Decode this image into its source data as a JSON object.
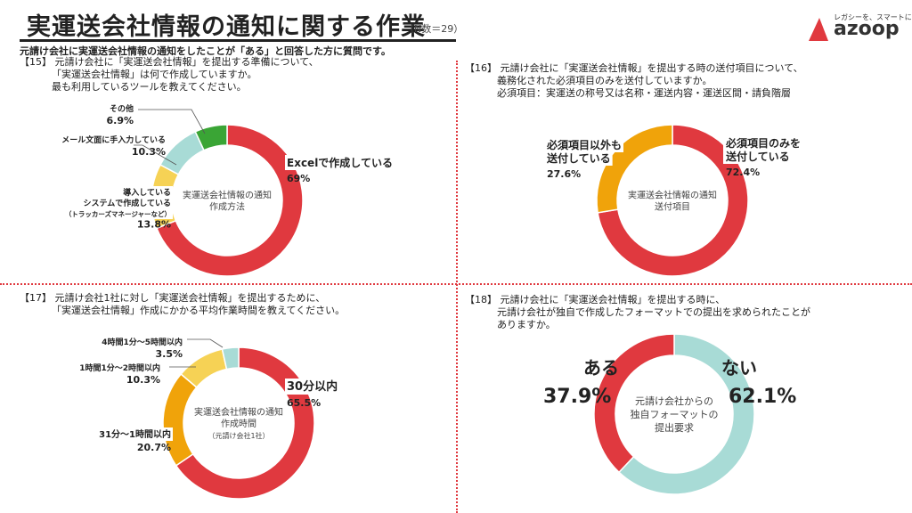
{
  "header": {
    "title": "実運送会社情報の通知に関する作業",
    "sample_note": "（N数＝29）",
    "intro": "元請け会社に実運送会社情報の通知をしたことが「ある」と回答した方に質問です。"
  },
  "logo": {
    "tagline": "レガシーを、スマートに。",
    "wordmark": "azoop"
  },
  "colors": {
    "red": "#e0393f",
    "orange": "#f0a30a",
    "yellow": "#f6d255",
    "teal": "#a8dbd6",
    "green": "#3aa535",
    "divider": "#e0393f"
  },
  "questions": {
    "q15": [
      "【15】 元請け会社に「実運送会社情報」を提出する準備について、",
      "「実運送会社情報」は何で作成していますか。",
      "最も利用しているツールを教えてください。"
    ],
    "q16": [
      "【16】 元請け会社に「実運送会社情報」を提出する時の送付項目について、",
      "義務化された必須項目のみを送付していますか。",
      "必須項目：実運送の称号又は名称・運送内容・運送区間・請負階層"
    ],
    "q17": [
      "【17】 元請け会社1社に対し「実運送会社情報」を提出するために、",
      "「実運送会社情報」作成にかかる平均作業時間を教えてください。"
    ],
    "q18": [
      "【18】 元請け会社に「実運送会社情報」を提出する時に、",
      "元請け会社が独自で作成したフォーマットでの提出を求められたことが",
      "ありますか。"
    ]
  },
  "chart_data": [
    {
      "type": "pie",
      "id": "q15",
      "center_label": [
        "実運送会社情報の通知",
        "作成方法"
      ],
      "categories": [
        "Excelで作成している",
        "導入している システムで作成している （トラッカーズマネージャーなど）",
        "メール文面に手入力している",
        "その他"
      ],
      "values": [
        69.0,
        13.8,
        10.3,
        6.9
      ],
      "unit": "%",
      "colors": [
        "#e0393f",
        "#f6d255",
        "#a8dbd6",
        "#3aa535"
      ],
      "labels": [
        {
          "lines": [
            "Excelで作成している"
          ],
          "value": "69%"
        },
        {
          "lines": [
            "導入している",
            "システムで作成している",
            "（トラッカーズマネージャーなど）"
          ],
          "value": "13.8%"
        },
        {
          "lines": [
            "メール文面に手入力している"
          ],
          "value": "10.3%"
        },
        {
          "lines": [
            "その他"
          ],
          "value": "6.9%"
        }
      ]
    },
    {
      "type": "pie",
      "id": "q16",
      "center_label": [
        "実運送会社情報の通知",
        "送付項目"
      ],
      "categories": [
        "必須項目のみを 送付している",
        "必須項目以外も 送付している"
      ],
      "values": [
        72.4,
        27.6
      ],
      "unit": "%",
      "colors": [
        "#e0393f",
        "#f0a30a"
      ],
      "labels": [
        {
          "lines": [
            "必須項目のみを",
            "送付している"
          ],
          "value": "72.4%"
        },
        {
          "lines": [
            "必須項目以外も",
            "送付している"
          ],
          "value": "27.6%"
        }
      ]
    },
    {
      "type": "pie",
      "id": "q17",
      "center_label": [
        "実運送会社情報の通知",
        "作成時間",
        "（元請け会社1社）"
      ],
      "categories": [
        "30分以内",
        "31分～1時間以内",
        "1時間1分～2時間以内",
        "4時間1分～5時間以内"
      ],
      "values": [
        65.5,
        20.7,
        10.3,
        3.5
      ],
      "unit": "%",
      "colors": [
        "#e0393f",
        "#f0a30a",
        "#f6d255",
        "#a8dbd6"
      ],
      "labels": [
        {
          "lines": [
            "30分以内"
          ],
          "value": "65.5%"
        },
        {
          "lines": [
            "31分～1時間以内"
          ],
          "value": "20.7%"
        },
        {
          "lines": [
            "1時間1分～2時間以内"
          ],
          "value": "10.3%"
        },
        {
          "lines": [
            "4時間1分～5時間以内"
          ],
          "value": "3.5%"
        }
      ]
    },
    {
      "type": "pie",
      "id": "q18",
      "center_label": [
        "元請け会社からの",
        "独自フォーマットの",
        "提出要求"
      ],
      "categories": [
        "ない",
        "ある"
      ],
      "values": [
        62.1,
        37.9
      ],
      "unit": "%",
      "colors": [
        "#a8dbd6",
        "#e0393f"
      ],
      "labels": [
        {
          "lines": [
            "ない"
          ],
          "value": "62.1%"
        },
        {
          "lines": [
            "ある"
          ],
          "value": "37.9%"
        }
      ]
    }
  ]
}
